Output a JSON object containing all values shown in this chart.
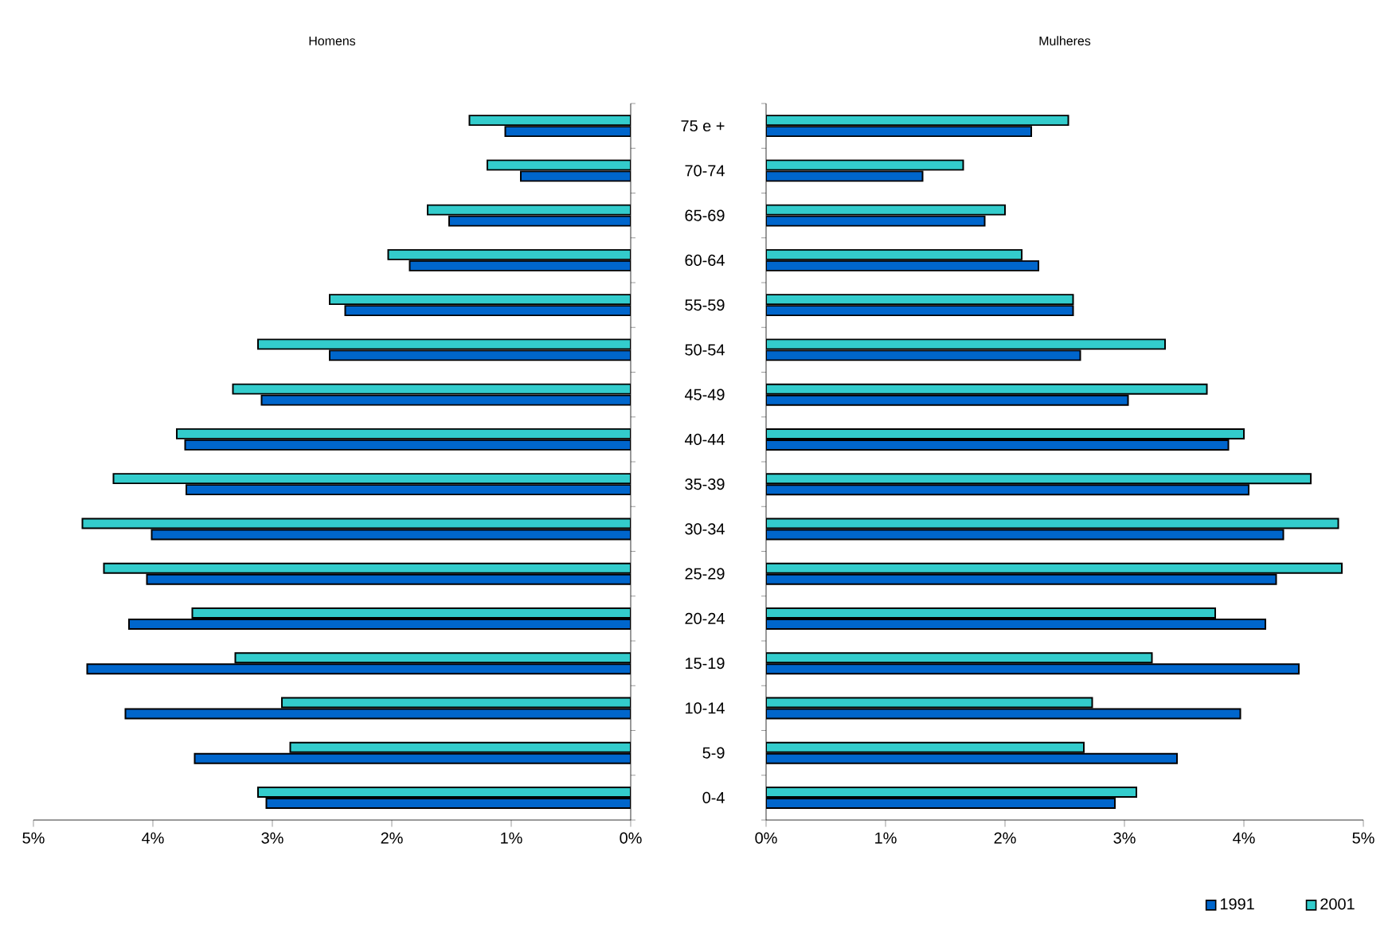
{
  "chart_data": [
    {
      "type": "bar",
      "orientation": "horizontal",
      "title": "Homens",
      "tick_labels": "x",
      "categories": [
        null,
        null,
        null,
        null,
        null,
        null,
        null,
        null,
        null,
        null,
        null,
        null,
        null,
        null,
        null,
        null
      ],
      "xlim": [
        5,
        0
      ],
      "xticks": [
        {
          "value": 5,
          "label": "5%"
        },
        {
          "value": 4,
          "label": "4%"
        },
        {
          "value": 3,
          "label": "3%"
        },
        {
          "value": 2,
          "label": "2%"
        },
        {
          "value": 1,
          "label": "1%"
        },
        {
          "value": 0,
          "label": "0%"
        }
      ],
      "series": [
        {
          "color": "#0066cc",
          "values": [
            1.05,
            0.92,
            1.52,
            1.85,
            2.39,
            2.52,
            3.09,
            3.73,
            3.72,
            4.01,
            4.05,
            4.2,
            4.55,
            4.23,
            3.65,
            3.05
          ]
        },
        {
          "color": "#33cccc",
          "values": [
            1.35,
            1.2,
            1.7,
            2.03,
            2.52,
            3.12,
            3.33,
            3.8,
            4.33,
            4.59,
            4.41,
            3.67,
            3.31,
            2.92,
            2.85,
            3.12
          ]
        }
      ]
    },
    {
      "type": "bar",
      "orientation": "horizontal",
      "title": "Mulheres",
      "legend": "bottom right",
      "categories": [
        "75 e +",
        "70-74",
        "65-69",
        "60-64",
        "55-59",
        "50-54",
        "45-49",
        "40-44",
        "35-39",
        "30-34",
        "25-29",
        "20-24",
        "15-19",
        "10-14",
        "5-9",
        "0-4"
      ],
      "xlim": [
        0,
        5
      ],
      "xticks": [
        {
          "value": 0,
          "label": "0%"
        },
        {
          "value": 1,
          "label": "1%"
        },
        {
          "value": 2,
          "label": "2%"
        },
        {
          "value": 3,
          "label": "3%"
        },
        {
          "value": 4,
          "label": "4%"
        },
        {
          "value": 5,
          "label": "5%"
        }
      ],
      "series": [
        {
          "name": "1991",
          "color": "#0066cc",
          "values": [
            2.22,
            1.31,
            1.83,
            2.28,
            2.57,
            2.63,
            3.03,
            3.87,
            4.04,
            4.33,
            4.27,
            4.18,
            4.46,
            3.97,
            3.44,
            2.92
          ]
        },
        {
          "name": "2001",
          "color": "#33cccc",
          "values": [
            2.53,
            1.65,
            2.0,
            2.14,
            2.57,
            3.34,
            3.69,
            4.0,
            4.56,
            4.79,
            4.82,
            3.76,
            3.23,
            2.73,
            2.66,
            3.1
          ]
        }
      ]
    }
  ]
}
